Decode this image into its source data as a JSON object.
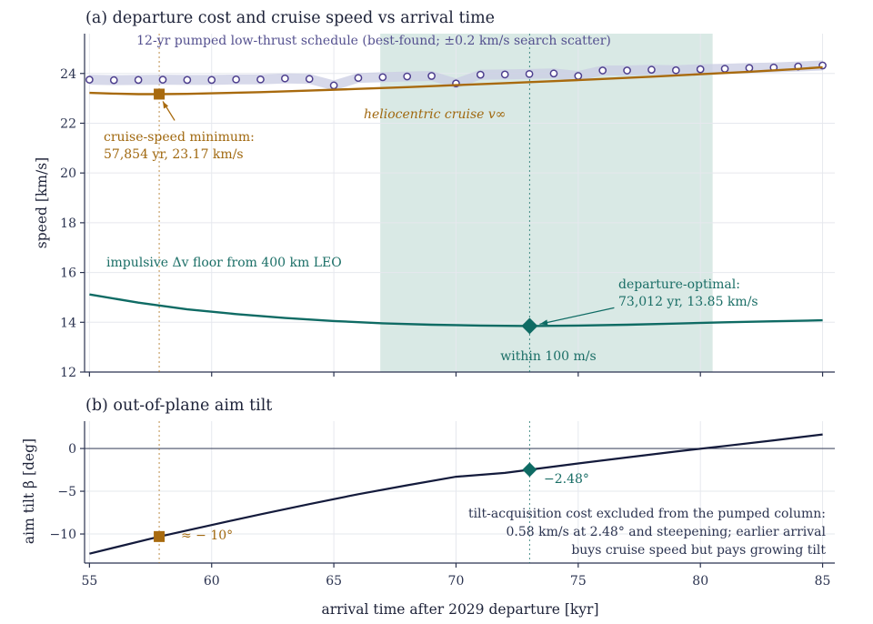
{
  "colors": {
    "axis": "#2b3350",
    "grid": "#e6e8ee",
    "cruise": "#a86a0e",
    "cruise_text": "#a0680f",
    "departure": "#0f6b64",
    "departure_text": "#1a6e66",
    "pumped": "#4d3f8e",
    "pumped_text": "#54508f",
    "pumped_band": "#c9cce3",
    "window_fill": "#d9e9e5",
    "tilt": "#141b3c",
    "zero_line": "#4a5068"
  },
  "chart_data": [
    {
      "type": "line",
      "title": "(a) departure cost and cruise speed vs arrival time",
      "xlabel": "",
      "ylabel": "speed [km/s]",
      "xlim": [
        54.8,
        85.5
      ],
      "ylim": [
        12,
        25.6
      ],
      "xticks": [
        55,
        60,
        65,
        70,
        75,
        80,
        85
      ],
      "yticks": [
        12,
        14,
        16,
        18,
        20,
        22,
        24
      ],
      "grid": true,
      "shaded_region": {
        "x": [
          66.9,
          80.5
        ],
        "label": "within 100 m/s"
      },
      "series": [
        {
          "name": "12-yr pumped low-thrust schedule (best-found; ±0.2 km/s search scatter)",
          "style": "open-circles",
          "x": [
            55,
            56,
            57,
            58,
            59,
            60,
            61,
            62,
            63,
            64,
            65,
            66,
            67,
            68,
            69,
            70,
            71,
            72,
            73,
            74,
            75,
            76,
            77,
            78,
            79,
            80,
            81,
            82,
            83,
            84,
            85
          ],
          "y": [
            23.75,
            23.73,
            23.74,
            23.75,
            23.74,
            23.74,
            23.76,
            23.76,
            23.8,
            23.78,
            23.52,
            23.82,
            23.85,
            23.88,
            23.9,
            23.6,
            23.95,
            23.96,
            23.98,
            24.0,
            23.9,
            24.12,
            24.12,
            24.15,
            24.13,
            24.17,
            24.19,
            24.22,
            24.24,
            24.28,
            24.32
          ],
          "band": 0.2
        },
        {
          "name": "heliocentric cruise v∞",
          "style": "line",
          "x": [
            55,
            56,
            57,
            57.854,
            59,
            60,
            62,
            64,
            66,
            68,
            70,
            72,
            74,
            76,
            78,
            80,
            82,
            84,
            85
          ],
          "y": [
            23.22,
            23.19,
            23.17,
            23.17,
            23.18,
            23.2,
            23.25,
            23.31,
            23.38,
            23.45,
            23.53,
            23.61,
            23.69,
            23.78,
            23.87,
            23.97,
            24.07,
            24.18,
            24.25
          ]
        },
        {
          "name": "impulsive Δv floor from 400 km LEO",
          "style": "line",
          "x": [
            55,
            57,
            59,
            61,
            63,
            65,
            67,
            69,
            71,
            73.012,
            75,
            77,
            79,
            81,
            83,
            85
          ],
          "y": [
            15.12,
            14.79,
            14.52,
            14.33,
            14.17,
            14.05,
            13.96,
            13.9,
            13.87,
            13.85,
            13.87,
            13.9,
            13.95,
            14.0,
            14.04,
            14.08
          ]
        }
      ],
      "markers": [
        {
          "name": "cruise-speed minimum",
          "x": 57.854,
          "y": 23.17
        },
        {
          "name": "departure-optimal",
          "x": 73.012,
          "y": 13.85
        }
      ],
      "annotations": {
        "pumped_label": "12-yr pumped low-thrust schedule (best-found; ±0.2 km/s search scatter)",
        "cruise_label": "heliocentric cruise v∞",
        "cruise_min_line1": "cruise-speed minimum:",
        "cruise_min_line2": "57,854 yr, 23.17 km/s",
        "impulsive_label": "impulsive Δv floor from 400 km LEO",
        "dep_opt_line1": "departure-optimal:",
        "dep_opt_line2": "73,012 yr, 13.85 km/s",
        "window_label": "within 100 m/s"
      }
    },
    {
      "type": "line",
      "title": "(b) out-of-plane aim tilt",
      "xlabel": "arrival time after 2029 departure [kyr]",
      "ylabel": "aim tilt β [deg]",
      "xlim": [
        54.8,
        85.5
      ],
      "ylim": [
        -13.4,
        3.2
      ],
      "xticks": [
        55,
        60,
        65,
        70,
        75,
        80,
        85
      ],
      "yticks": [
        -10,
        -5,
        0
      ],
      "grid": true,
      "series": [
        {
          "name": "aim tilt",
          "style": "line",
          "x": [
            55,
            57.854,
            60,
            62,
            64,
            66,
            68,
            70,
            72,
            73.012,
            75,
            77,
            79,
            81,
            83,
            85
          ],
          "y": [
            -12.3,
            -10.3,
            -8.95,
            -7.7,
            -6.5,
            -5.35,
            -4.3,
            -3.3,
            -2.85,
            -2.48,
            -1.75,
            -1.05,
            -0.35,
            0.3,
            0.95,
            1.65
          ]
        }
      ],
      "markers": [
        {
          "name": "tilt at cruise-speed minimum",
          "x": 57.854,
          "y": -10.3,
          "label": "≈ − 10°"
        },
        {
          "name": "tilt at departure-optimal",
          "x": 73.012,
          "y": -2.48,
          "label": "−2.48°"
        }
      ],
      "annotations": {
        "note_line1": "tilt-acquisition cost excluded from the pumped column:",
        "note_line2": "0.58 km/s at 2.48° and steepening; earlier arrival",
        "note_line3": "buys cruise speed but pays growing tilt"
      }
    }
  ]
}
